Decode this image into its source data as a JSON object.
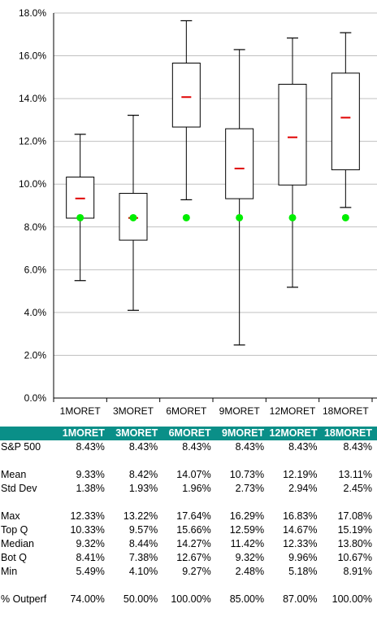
{
  "chart_data": {
    "type": "boxplot",
    "categories": [
      "1MORET",
      "3MORET",
      "6MORET",
      "9MORET",
      "12MORET",
      "18MORET"
    ],
    "ylim": [
      0,
      18
    ],
    "yticks": [
      "0.0%",
      "2.0%",
      "4.0%",
      "6.0%",
      "8.0%",
      "10.0%",
      "12.0%",
      "14.0%",
      "16.0%",
      "18.0%"
    ],
    "ytick_values": [
      0,
      2,
      4,
      6,
      8,
      10,
      12,
      14,
      16,
      18
    ],
    "grid": true,
    "series": {
      "max": [
        12.33,
        13.22,
        17.64,
        16.29,
        16.83,
        17.08
      ],
      "top_q": [
        10.33,
        9.57,
        15.66,
        12.59,
        14.67,
        15.19
      ],
      "median": [
        9.32,
        8.44,
        14.27,
        11.42,
        12.33,
        13.8
      ],
      "bot_q": [
        8.41,
        7.38,
        12.67,
        9.32,
        9.96,
        10.67
      ],
      "min": [
        5.49,
        4.1,
        9.27,
        2.48,
        5.18,
        8.91
      ],
      "mean": [
        9.33,
        8.42,
        14.07,
        10.73,
        12.19,
        13.11
      ],
      "sp500": [
        8.43,
        8.43,
        8.43,
        8.43,
        8.43,
        8.43
      ]
    },
    "colors": {
      "mean": "#e00000",
      "sp500": "#00ee00",
      "box": "#000000",
      "grid": "#c0c0c0"
    }
  },
  "table": {
    "header": [
      "",
      "1MORET",
      "3MORET",
      "6MORET",
      "9MORET",
      "12MORET",
      "18MORET"
    ],
    "header_color": "#0a8f88",
    "rows": [
      [
        "S&P 500",
        "8.43%",
        "8.43%",
        "8.43%",
        "8.43%",
        "8.43%",
        "8.43%"
      ],
      [],
      [
        "Mean",
        "9.33%",
        "8.42%",
        "14.07%",
        "10.73%",
        "12.19%",
        "13.11%"
      ],
      [
        "Std Dev",
        "1.38%",
        "1.93%",
        "1.96%",
        "2.73%",
        "2.94%",
        "2.45%"
      ],
      [],
      [
        "Max",
        "12.33%",
        "13.22%",
        "17.64%",
        "16.29%",
        "16.83%",
        "17.08%"
      ],
      [
        "Top Q",
        "10.33%",
        "9.57%",
        "15.66%",
        "12.59%",
        "14.67%",
        "15.19%"
      ],
      [
        "Median",
        "9.32%",
        "8.44%",
        "14.27%",
        "11.42%",
        "12.33%",
        "13.80%"
      ],
      [
        "Bot Q",
        "8.41%",
        "7.38%",
        "12.67%",
        "9.32%",
        "9.96%",
        "10.67%"
      ],
      [
        "Min",
        "5.49%",
        "4.10%",
        "9.27%",
        "2.48%",
        "5.18%",
        "8.91%"
      ],
      [],
      [
        "% Outperf",
        "74.00%",
        "50.00%",
        "100.00%",
        "85.00%",
        "87.00%",
        "100.00%"
      ]
    ]
  }
}
